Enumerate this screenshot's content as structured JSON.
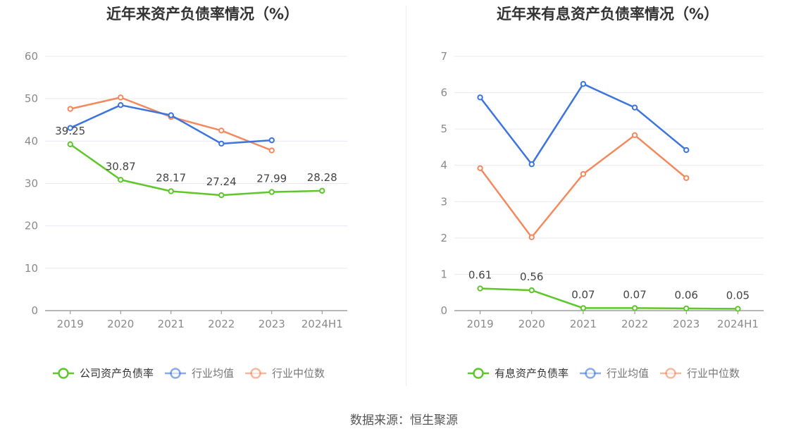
{
  "source_text": "数据来源：恒生聚源",
  "chart_data": [
    {
      "type": "line",
      "title": "近年来资产负债率情况（%）",
      "categories": [
        "2019",
        "2020",
        "2021",
        "2022",
        "2023",
        "2024H1"
      ],
      "ylim": [
        0,
        60
      ],
      "yticks": [
        "0",
        "10",
        "20",
        "30",
        "40",
        "50",
        "60"
      ],
      "grid": true,
      "legend_position": "bottom-center",
      "series": [
        {
          "name": "公司资产负债率",
          "color": "#5ec72a",
          "values": [
            39.25,
            30.87,
            28.17,
            27.24,
            27.99,
            28.28
          ],
          "labels": [
            "39.25",
            "30.87",
            "28.17",
            "27.24",
            "27.99",
            "28.28"
          ]
        },
        {
          "name": "行业均值",
          "color": "#3c74e0",
          "values": [
            43.1,
            48.5,
            46.1,
            39.4,
            40.2,
            null
          ]
        },
        {
          "name": "行业中位数",
          "color": "#f4895e",
          "values": [
            47.6,
            50.3,
            45.7,
            42.5,
            37.8,
            null
          ]
        }
      ]
    },
    {
      "type": "line",
      "title": "近年来有息资产负债率情况（%）",
      "categories": [
        "2019",
        "2020",
        "2021",
        "2022",
        "2023",
        "2024H1"
      ],
      "ylim": [
        0,
        7
      ],
      "yticks": [
        "0",
        "1",
        "2",
        "3",
        "4",
        "5",
        "6",
        "7"
      ],
      "grid": true,
      "legend_position": "bottom-center",
      "series": [
        {
          "name": "有息资产负债率",
          "color": "#5ec72a",
          "values": [
            0.61,
            0.56,
            0.07,
            0.07,
            0.06,
            0.05
          ],
          "labels": [
            "0.61",
            "0.56",
            "0.07",
            "0.07",
            "0.06",
            "0.05"
          ]
        },
        {
          "name": "行业均值",
          "color": "#3c74e0",
          "values": [
            5.87,
            4.03,
            6.24,
            5.59,
            4.42,
            null
          ]
        },
        {
          "name": "行业中位数",
          "color": "#f4895e",
          "values": [
            3.92,
            2.02,
            3.76,
            4.83,
            3.65,
            null
          ]
        }
      ]
    }
  ]
}
